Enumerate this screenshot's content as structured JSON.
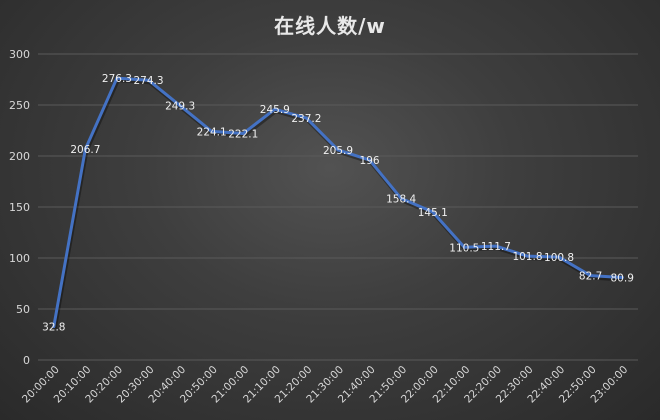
{
  "chart_data": {
    "type": "line",
    "title": "在线人数/w",
    "xlabel": "",
    "ylabel": "",
    "ylim": [
      0,
      300
    ],
    "yticks": [
      0,
      50,
      100,
      150,
      200,
      250,
      300
    ],
    "ytick_labels": [
      "0",
      "50",
      "100",
      "150",
      "200",
      "250",
      "300"
    ],
    "grid": true,
    "legend": "none",
    "line_color": "#4472c4",
    "categories": [
      "20:00:00",
      "20:10:00",
      "20:20:00",
      "20:30:00",
      "20:40:00",
      "20:50:00",
      "21:00:00",
      "21:10:00",
      "21:20:00",
      "21:30:00",
      "21:40:00",
      "21:50:00",
      "22:00:00",
      "22:10:00",
      "22:20:00",
      "22:30:00",
      "22:40:00",
      "22:50:00",
      "23:00:00"
    ],
    "values": [
      32.8,
      206.7,
      276.3,
      274.3,
      249.3,
      224.1,
      222.1,
      245.9,
      237.2,
      205.9,
      196,
      158.4,
      145.1,
      110.5,
      111.7,
      101.8,
      100.8,
      82.7,
      80.9
    ],
    "data_labels": [
      "32.8",
      "206.7",
      "276.3",
      "274.3",
      "249.3",
      "224.1",
      "222.1",
      "245.9",
      "237.2",
      "205.9",
      "196",
      "158.4",
      "145.1",
      "110.5",
      "111.7",
      "101.8",
      "100.8",
      "82.7",
      "80.9"
    ]
  }
}
